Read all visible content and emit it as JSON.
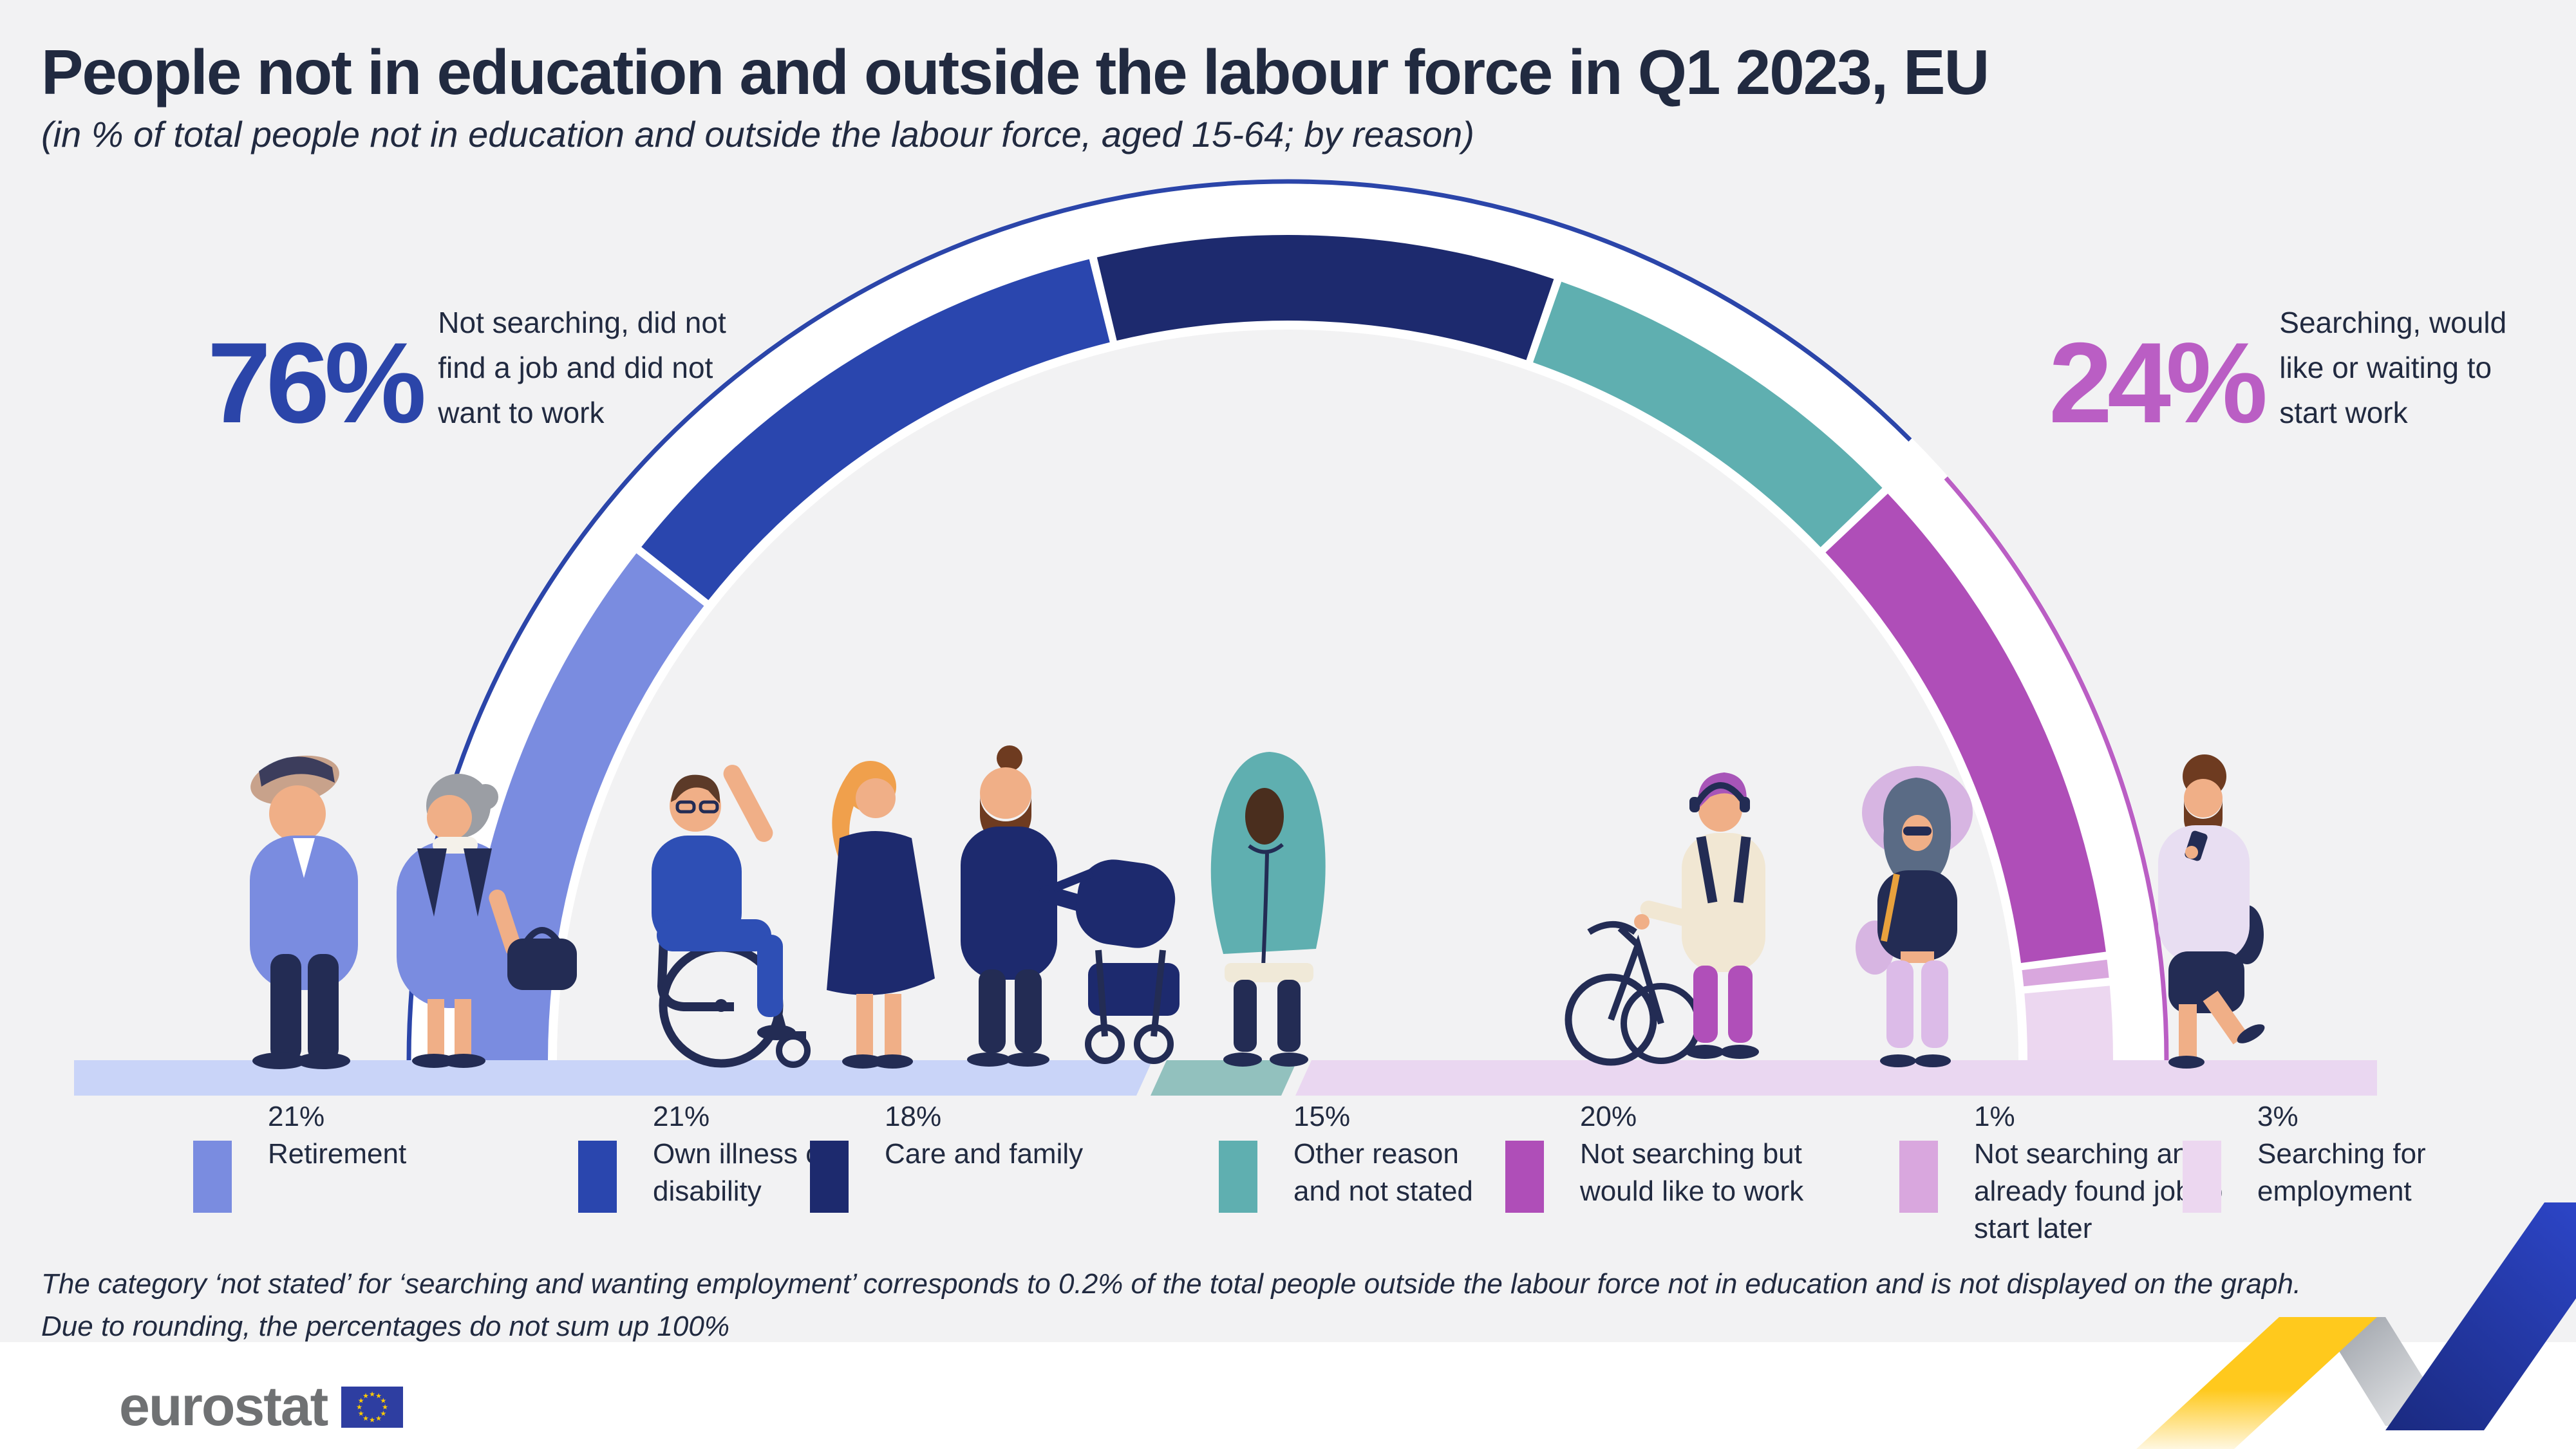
{
  "header": {
    "title": "People not in education and outside the labour force in Q1 2023, EU",
    "subtitle": "(in % of total people not in education and outside the labour force, aged 15-64; by reason)"
  },
  "summary": {
    "left": {
      "value": "76%",
      "pct": 76,
      "color": "#2B45A9",
      "label": "Not searching, did not\nfind a job and did not\nwant to work"
    },
    "right": {
      "value": "24%",
      "pct": 24,
      "color": "#BA5EC4",
      "label": "Searching, would\nlike or waiting to\nstart work"
    }
  },
  "chart_data": {
    "type": "pie",
    "variant": "semicircle-donut-gauge",
    "unit": "%",
    "title": "People not in education and outside the labour force in Q1 2023, EU",
    "categories": [
      "Retirement",
      "Own illness or disability",
      "Care and family",
      "Other reason and not stated",
      "Not searching  but would like to work",
      "Not searching and already found job to start later",
      "Searching for employment"
    ],
    "values": [
      21,
      21,
      18,
      15,
      20,
      1,
      3
    ],
    "colors": [
      "#7A8CE0",
      "#2A46AE",
      "#1D2A6E",
      "#5FAFB0",
      "#AF4EB8",
      "#D9A7DE",
      "#ECD7F0"
    ],
    "groups": [
      {
        "label": "Not searching, did not find a job and did not want to work",
        "value": 76,
        "color": "#2B45A9"
      },
      {
        "label": "Searching, would like or waiting to start work",
        "value": 24,
        "color": "#BA5EC4"
      }
    ],
    "baseline_strip_colors": [
      "#C9D4F8",
      "#92C1BE",
      "#EAD7F1"
    ],
    "legend_position": "bottom",
    "grid": false,
    "note": "The category ‘not stated’ for ‘searching and wanting employment’ corresponds to 0.2% of the total people outside the labour force not in education and is not displayed on the graph. Due to rounding, the percentages do not sum up 100%"
  },
  "legend": [
    {
      "value": "21%",
      "label": "Retirement",
      "color": "#7A8CE0"
    },
    {
      "value": "21%",
      "label": "Own illness or\ndisability",
      "color": "#2A46AE"
    },
    {
      "value": "18%",
      "label": "Care and family",
      "color": "#1D2A6E"
    },
    {
      "value": "15%",
      "label": "Other reason\nand not stated",
      "color": "#5FAFB0"
    },
    {
      "value": "20%",
      "label": "Not searching  but\nwould like to work",
      "color": "#AF4EB8"
    },
    {
      "value": "1%",
      "label": "Not searching and\nalready found job to\nstart later",
      "color": "#D9A7DE"
    },
    {
      "value": "3%",
      "label": "Searching for\nemployment",
      "color": "#ECD7F0"
    }
  ],
  "footnote": {
    "line1": "The category ‘not stated’ for ‘searching and wanting employment’ corresponds to 0.2% of the total people outside the labour force not in education and is not displayed on the graph.",
    "line2": "Due to rounding, the percentages do not sum up 100%"
  },
  "footer": {
    "logo_text": "eurostat"
  },
  "colors": {
    "background": "#F2F2F3",
    "panel_white": "#FFFFFF",
    "ink": "#212A40",
    "accent_blue": "#2B45A9",
    "accent_magenta": "#BA5EC4",
    "eu_flag_blue": "#2E3EA1",
    "eu_star_yellow": "#FFCC00",
    "logo_grey": "#6F7173",
    "ribbon_yellow": "#FFC91D",
    "ribbon_grey": "#9EA3AA",
    "ribbon_blue": "#2F49D1"
  }
}
